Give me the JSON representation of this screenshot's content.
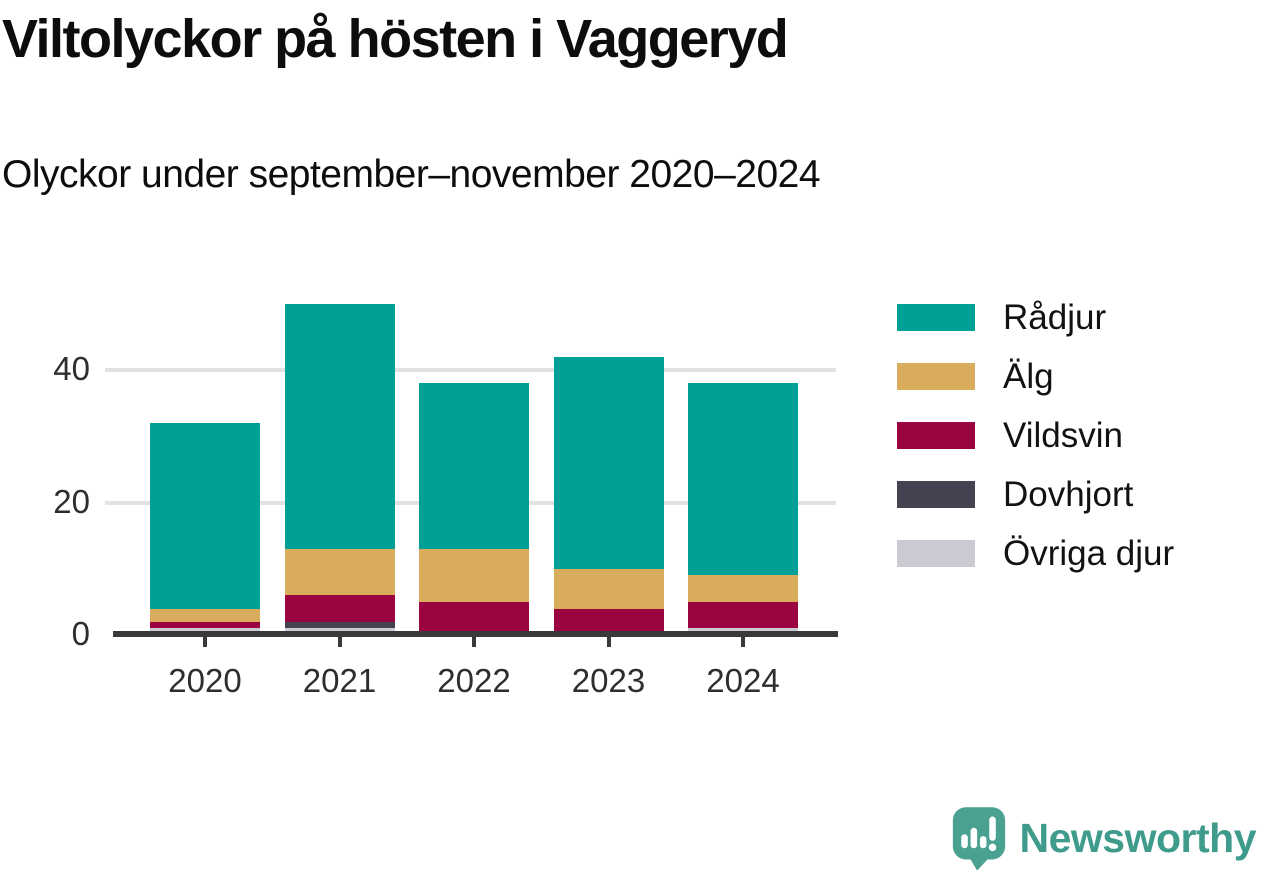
{
  "title": "Viltolyckor på hösten i Vaggeryd",
  "subtitle": "Olyckor under september–november 2020–2024",
  "chart_data": {
    "type": "bar",
    "stacked": true,
    "title": "Viltolyckor på hösten i Vaggeryd",
    "subtitle": "Olyckor under september–november 2020–2024",
    "categories": [
      "2020",
      "2021",
      "2022",
      "2023",
      "2024"
    ],
    "series": [
      {
        "name": "Rådjur",
        "color": "#00a096",
        "values": [
          28,
          37,
          25,
          32,
          29
        ]
      },
      {
        "name": "Älg",
        "color": "#d8ac5c",
        "values": [
          2,
          7,
          8,
          6,
          4
        ]
      },
      {
        "name": "Vildsvin",
        "color": "#9c0341",
        "values": [
          1,
          4,
          5,
          4,
          4
        ]
      },
      {
        "name": "Dovhjort",
        "color": "#454150",
        "values": [
          0,
          1,
          0,
          0,
          0
        ]
      },
      {
        "name": "Övriga djur",
        "color": "#c9cad2",
        "values": [
          1,
          1,
          0,
          0,
          1
        ]
      }
    ],
    "totals": [
      32,
      50,
      38,
      42,
      38
    ],
    "xlabel": "",
    "ylabel": "",
    "y_ticks": [
      0,
      20,
      40
    ],
    "ylim": [
      0,
      50
    ],
    "grid": "horizontal",
    "legend_position": "right",
    "axis_color": "#3a3a3a",
    "gridline_color": "#e2e2e2",
    "text_color": "#2e2e2e"
  },
  "branding": {
    "logo_text": "Newsworthy",
    "logo_color": "#4aa091",
    "logo_icon": "speech-bubble-bar-chart-exclamation"
  }
}
